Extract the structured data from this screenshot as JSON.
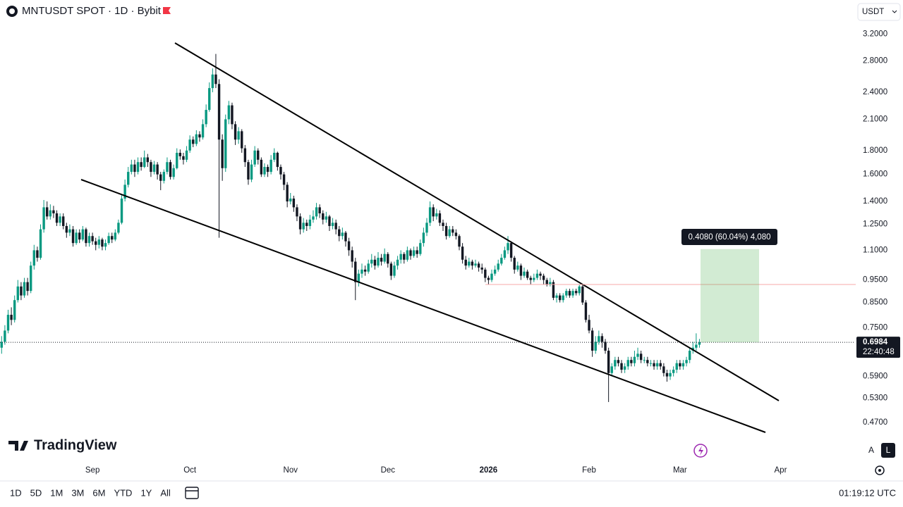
{
  "chart_data": {
    "type": "candlestick",
    "title": "MNTUSDT SPOT · 1D · Bybit",
    "currency": "USDT",
    "log_scale": true,
    "grid": false,
    "up_color": "#089981",
    "down_color": "#131722",
    "ylim": [
      0.395,
      3.41
    ],
    "yticks": [
      {
        "value": 3.2,
        "label": "3.2000"
      },
      {
        "value": 2.8,
        "label": "2.8000"
      },
      {
        "value": 2.4,
        "label": "2.4000"
      },
      {
        "value": 2.1,
        "label": "2.1000"
      },
      {
        "value": 1.8,
        "label": "1.8000"
      },
      {
        "value": 1.6,
        "label": "1.6000"
      },
      {
        "value": 1.4,
        "label": "1.4000"
      },
      {
        "value": 1.25,
        "label": "1.2500"
      },
      {
        "value": 1.1,
        "label": "1.1000"
      },
      {
        "value": 0.95,
        "label": "0.9500"
      },
      {
        "value": 0.85,
        "label": "0.8500"
      },
      {
        "value": 0.75,
        "label": "0.7500"
      },
      {
        "value": 0.59,
        "label": "0.5900"
      },
      {
        "value": 0.53,
        "label": "0.5300"
      },
      {
        "value": 0.47,
        "label": "0.4700"
      }
    ],
    "xlim": [
      -0.5,
      262.5
    ],
    "xticks": [
      {
        "value": 28,
        "label": "Sep"
      },
      {
        "value": 58,
        "label": "Oct"
      },
      {
        "value": 89,
        "label": "Nov"
      },
      {
        "value": 119,
        "label": "Dec"
      },
      {
        "value": 150,
        "label": "2026"
      },
      {
        "value": 181,
        "label": "Feb"
      },
      {
        "value": 209,
        "label": "Mar"
      },
      {
        "value": 240,
        "label": "Apr"
      }
    ],
    "last_price": 0.6984,
    "countdown": "22:40:48",
    "measure": {
      "value": 0.408,
      "label": "0.4080 (60.04%) 4,080"
    },
    "ohlc": [
      [
        0.68,
        0.72,
        0.66,
        0.7
      ],
      [
        0.7,
        0.76,
        0.69,
        0.74
      ],
      [
        0.74,
        0.82,
        0.73,
        0.8
      ],
      [
        0.8,
        0.83,
        0.76,
        0.78
      ],
      [
        0.78,
        0.88,
        0.77,
        0.86
      ],
      [
        0.86,
        0.95,
        0.85,
        0.92
      ],
      [
        0.92,
        0.94,
        0.86,
        0.88
      ],
      [
        0.88,
        0.96,
        0.87,
        0.94
      ],
      [
        0.94,
        0.96,
        0.88,
        0.9
      ],
      [
        0.9,
        1.04,
        0.89,
        1.02
      ],
      [
        1.02,
        1.13,
        1.0,
        1.1
      ],
      [
        1.1,
        1.12,
        1.04,
        1.06
      ],
      [
        1.06,
        1.25,
        1.05,
        1.22
      ],
      [
        1.22,
        1.41,
        1.2,
        1.36
      ],
      [
        1.36,
        1.4,
        1.28,
        1.3
      ],
      [
        1.3,
        1.38,
        1.28,
        1.34
      ],
      [
        1.34,
        1.37,
        1.29,
        1.32
      ],
      [
        1.32,
        1.34,
        1.24,
        1.26
      ],
      [
        1.26,
        1.32,
        1.24,
        1.3
      ],
      [
        1.3,
        1.32,
        1.22,
        1.24
      ],
      [
        1.24,
        1.26,
        1.17,
        1.2
      ],
      [
        1.2,
        1.25,
        1.18,
        1.22
      ],
      [
        1.22,
        1.24,
        1.12,
        1.14
      ],
      [
        1.14,
        1.22,
        1.13,
        1.2
      ],
      [
        1.2,
        1.22,
        1.14,
        1.16
      ],
      [
        1.16,
        1.24,
        1.15,
        1.22
      ],
      [
        1.22,
        1.23,
        1.12,
        1.14
      ],
      [
        1.14,
        1.2,
        1.12,
        1.18
      ],
      [
        1.18,
        1.2,
        1.13,
        1.15
      ],
      [
        1.15,
        1.17,
        1.1,
        1.13
      ],
      [
        1.13,
        1.18,
        1.11,
        1.16
      ],
      [
        1.16,
        1.17,
        1.1,
        1.12
      ],
      [
        1.12,
        1.16,
        1.1,
        1.14
      ],
      [
        1.14,
        1.2,
        1.13,
        1.18
      ],
      [
        1.18,
        1.2,
        1.14,
        1.16
      ],
      [
        1.16,
        1.22,
        1.15,
        1.2
      ],
      [
        1.2,
        1.28,
        1.19,
        1.26
      ],
      [
        1.26,
        1.45,
        1.25,
        1.42
      ],
      [
        1.42,
        1.56,
        1.4,
        1.52
      ],
      [
        1.52,
        1.66,
        1.5,
        1.62
      ],
      [
        1.62,
        1.72,
        1.6,
        1.68
      ],
      [
        1.68,
        1.72,
        1.58,
        1.62
      ],
      [
        1.62,
        1.74,
        1.6,
        1.7
      ],
      [
        1.7,
        1.74,
        1.63,
        1.66
      ],
      [
        1.66,
        1.8,
        1.65,
        1.74
      ],
      [
        1.74,
        1.77,
        1.66,
        1.7
      ],
      [
        1.7,
        1.72,
        1.58,
        1.62
      ],
      [
        1.62,
        1.71,
        1.6,
        1.68
      ],
      [
        1.68,
        1.7,
        1.56,
        1.6
      ],
      [
        1.6,
        1.62,
        1.48,
        1.55
      ],
      [
        1.55,
        1.64,
        1.53,
        1.62
      ],
      [
        1.62,
        1.74,
        1.6,
        1.7
      ],
      [
        1.7,
        1.72,
        1.56,
        1.58
      ],
      [
        1.58,
        1.68,
        1.56,
        1.65
      ],
      [
        1.65,
        1.82,
        1.64,
        1.78
      ],
      [
        1.78,
        1.81,
        1.72,
        1.75
      ],
      [
        1.75,
        1.78,
        1.68,
        1.72
      ],
      [
        1.72,
        1.84,
        1.7,
        1.8
      ],
      [
        1.8,
        1.94,
        1.78,
        1.9
      ],
      [
        1.9,
        1.93,
        1.83,
        1.86
      ],
      [
        1.86,
        1.99,
        1.84,
        1.95
      ],
      [
        1.95,
        1.98,
        1.88,
        1.92
      ],
      [
        1.92,
        2.1,
        1.9,
        2.05
      ],
      [
        2.05,
        2.26,
        2.02,
        2.2
      ],
      [
        2.2,
        2.52,
        2.18,
        2.45
      ],
      [
        2.45,
        2.7,
        2.4,
        2.62
      ],
      [
        2.62,
        2.9,
        2.45,
        2.5
      ],
      [
        2.5,
        2.56,
        1.17,
        1.9
      ],
      [
        1.9,
        1.95,
        1.55,
        1.65
      ],
      [
        1.65,
        2.15,
        1.62,
        2.1
      ],
      [
        2.1,
        2.3,
        2.05,
        2.25
      ],
      [
        2.25,
        2.28,
        2.0,
        2.05
      ],
      [
        2.05,
        2.08,
        1.85,
        1.9
      ],
      [
        1.9,
        2.02,
        1.86,
        1.98
      ],
      [
        1.98,
        2.0,
        1.78,
        1.82
      ],
      [
        1.82,
        1.85,
        1.66,
        1.7
      ],
      [
        1.7,
        1.72,
        1.52,
        1.56
      ],
      [
        1.56,
        1.72,
        1.54,
        1.68
      ],
      [
        1.68,
        1.84,
        1.66,
        1.8
      ],
      [
        1.8,
        1.82,
        1.68,
        1.72
      ],
      [
        1.72,
        1.74,
        1.58,
        1.6
      ],
      [
        1.6,
        1.69,
        1.58,
        1.66
      ],
      [
        1.66,
        1.68,
        1.58,
        1.62
      ],
      [
        1.62,
        1.76,
        1.6,
        1.72
      ],
      [
        1.72,
        1.82,
        1.7,
        1.78
      ],
      [
        1.78,
        1.79,
        1.63,
        1.66
      ],
      [
        1.66,
        1.68,
        1.56,
        1.6
      ],
      [
        1.6,
        1.62,
        1.48,
        1.52
      ],
      [
        1.52,
        1.54,
        1.36,
        1.4
      ],
      [
        1.4,
        1.46,
        1.38,
        1.42
      ],
      [
        1.42,
        1.44,
        1.33,
        1.36
      ],
      [
        1.36,
        1.38,
        1.27,
        1.3
      ],
      [
        1.3,
        1.32,
        1.19,
        1.22
      ],
      [
        1.22,
        1.29,
        1.2,
        1.26
      ],
      [
        1.26,
        1.28,
        1.21,
        1.24
      ],
      [
        1.24,
        1.31,
        1.22,
        1.28
      ],
      [
        1.28,
        1.34,
        1.26,
        1.3
      ],
      [
        1.3,
        1.39,
        1.28,
        1.36
      ],
      [
        1.36,
        1.38,
        1.29,
        1.32
      ],
      [
        1.32,
        1.34,
        1.25,
        1.28
      ],
      [
        1.28,
        1.33,
        1.26,
        1.3
      ],
      [
        1.3,
        1.31,
        1.21,
        1.24
      ],
      [
        1.24,
        1.29,
        1.22,
        1.26
      ],
      [
        1.26,
        1.28,
        1.19,
        1.22
      ],
      [
        1.22,
        1.24,
        1.15,
        1.18
      ],
      [
        1.18,
        1.23,
        1.16,
        1.2
      ],
      [
        1.2,
        1.21,
        1.12,
        1.15
      ],
      [
        1.15,
        1.17,
        1.07,
        1.1
      ],
      [
        1.1,
        1.12,
        1.01,
        1.04
      ],
      [
        1.04,
        1.06,
        0.86,
        0.94
      ],
      [
        0.94,
        1.0,
        0.92,
        0.98
      ],
      [
        0.98,
        1.03,
        0.96,
        1.0
      ],
      [
        1.0,
        1.02,
        0.97,
        0.99
      ],
      [
        0.99,
        1.05,
        0.98,
        1.03
      ],
      [
        1.03,
        1.08,
        1.01,
        1.05
      ],
      [
        1.05,
        1.07,
        1.0,
        1.02
      ],
      [
        1.02,
        1.09,
        1.01,
        1.06
      ],
      [
        1.06,
        1.08,
        1.02,
        1.04
      ],
      [
        1.04,
        1.11,
        1.03,
        1.08
      ],
      [
        1.08,
        1.09,
        1.01,
        1.03
      ],
      [
        1.03,
        1.04,
        0.95,
        0.97
      ],
      [
        0.97,
        1.04,
        0.96,
        1.02
      ],
      [
        1.02,
        1.07,
        1.0,
        1.05
      ],
      [
        1.05,
        1.1,
        1.03,
        1.08
      ],
      [
        1.08,
        1.09,
        1.03,
        1.05
      ],
      [
        1.05,
        1.12,
        1.04,
        1.1
      ],
      [
        1.1,
        1.11,
        1.05,
        1.07
      ],
      [
        1.07,
        1.12,
        1.06,
        1.1
      ],
      [
        1.1,
        1.12,
        1.06,
        1.08
      ],
      [
        1.08,
        1.16,
        1.07,
        1.14
      ],
      [
        1.14,
        1.23,
        1.12,
        1.2
      ],
      [
        1.2,
        1.29,
        1.18,
        1.26
      ],
      [
        1.26,
        1.4,
        1.24,
        1.36
      ],
      [
        1.36,
        1.38,
        1.27,
        1.3
      ],
      [
        1.3,
        1.35,
        1.28,
        1.32
      ],
      [
        1.32,
        1.34,
        1.24,
        1.26
      ],
      [
        1.26,
        1.28,
        1.21,
        1.24
      ],
      [
        1.24,
        1.26,
        1.16,
        1.18
      ],
      [
        1.18,
        1.24,
        1.17,
        1.22
      ],
      [
        1.22,
        1.24,
        1.18,
        1.2
      ],
      [
        1.2,
        1.22,
        1.16,
        1.18
      ],
      [
        1.18,
        1.19,
        1.1,
        1.12
      ],
      [
        1.12,
        1.14,
        1.03,
        1.05
      ],
      [
        1.05,
        1.07,
        1.0,
        1.02
      ],
      [
        1.02,
        1.06,
        1.01,
        1.04
      ],
      [
        1.04,
        1.05,
        1.0,
        1.02
      ],
      [
        1.02,
        1.05,
        1.01,
        1.03
      ],
      [
        1.03,
        1.04,
        0.99,
        1.01
      ],
      [
        1.01,
        1.03,
        0.98,
        1.0
      ],
      [
        1.0,
        1.01,
        0.94,
        0.96
      ],
      [
        0.96,
        0.97,
        0.93,
        0.95
      ],
      [
        0.95,
        1.0,
        0.94,
        0.98
      ],
      [
        0.98,
        1.02,
        0.97,
        1.0
      ],
      [
        1.0,
        1.05,
        0.99,
        1.03
      ],
      [
        1.03,
        1.08,
        1.02,
        1.06
      ],
      [
        1.06,
        1.12,
        1.05,
        1.1
      ],
      [
        1.1,
        1.18,
        1.08,
        1.14
      ],
      [
        1.14,
        1.15,
        1.04,
        1.06
      ],
      [
        1.06,
        1.07,
        0.98,
        1.0
      ],
      [
        1.0,
        1.04,
        0.99,
        1.02
      ],
      [
        1.02,
        1.03,
        0.95,
        0.97
      ],
      [
        0.97,
        1.01,
        0.96,
        0.99
      ],
      [
        0.99,
        1.0,
        0.95,
        0.96
      ],
      [
        0.96,
        0.97,
        0.93,
        0.95
      ],
      [
        0.95,
        0.98,
        0.94,
        0.96
      ],
      [
        0.96,
        1.0,
        0.95,
        0.98
      ],
      [
        0.98,
        0.99,
        0.95,
        0.97
      ],
      [
        0.97,
        0.98,
        0.93,
        0.95
      ],
      [
        0.95,
        0.96,
        0.92,
        0.93
      ],
      [
        0.93,
        0.96,
        0.92,
        0.94
      ],
      [
        0.94,
        0.95,
        0.86,
        0.87
      ],
      [
        0.87,
        0.89,
        0.85,
        0.88
      ],
      [
        0.88,
        0.89,
        0.85,
        0.86
      ],
      [
        0.86,
        0.89,
        0.85,
        0.88
      ],
      [
        0.88,
        0.91,
        0.87,
        0.9
      ],
      [
        0.9,
        0.91,
        0.87,
        0.88
      ],
      [
        0.88,
        0.91,
        0.87,
        0.9
      ],
      [
        0.9,
        0.91,
        0.88,
        0.89
      ],
      [
        0.89,
        0.93,
        0.88,
        0.92
      ],
      [
        0.92,
        0.93,
        0.84,
        0.85
      ],
      [
        0.85,
        0.86,
        0.77,
        0.78
      ],
      [
        0.78,
        0.8,
        0.73,
        0.74
      ],
      [
        0.74,
        0.75,
        0.65,
        0.67
      ],
      [
        0.67,
        0.72,
        0.66,
        0.7
      ],
      [
        0.7,
        0.74,
        0.69,
        0.72
      ],
      [
        0.72,
        0.73,
        0.68,
        0.7
      ],
      [
        0.7,
        0.71,
        0.66,
        0.67
      ],
      [
        0.67,
        0.68,
        0.52,
        0.6
      ],
      [
        0.6,
        0.63,
        0.59,
        0.62
      ],
      [
        0.62,
        0.65,
        0.61,
        0.64
      ],
      [
        0.64,
        0.65,
        0.62,
        0.63
      ],
      [
        0.63,
        0.64,
        0.6,
        0.61
      ],
      [
        0.61,
        0.63,
        0.6,
        0.62
      ],
      [
        0.62,
        0.65,
        0.61,
        0.64
      ],
      [
        0.64,
        0.65,
        0.62,
        0.63
      ],
      [
        0.63,
        0.67,
        0.62,
        0.65
      ],
      [
        0.65,
        0.68,
        0.64,
        0.66
      ],
      [
        0.66,
        0.67,
        0.63,
        0.64
      ],
      [
        0.64,
        0.65,
        0.63,
        0.64
      ],
      [
        0.64,
        0.65,
        0.62,
        0.63
      ],
      [
        0.63,
        0.64,
        0.62,
        0.63
      ],
      [
        0.63,
        0.64,
        0.61,
        0.62
      ],
      [
        0.62,
        0.64,
        0.61,
        0.63
      ],
      [
        0.63,
        0.64,
        0.61,
        0.62
      ],
      [
        0.62,
        0.63,
        0.59,
        0.6
      ],
      [
        0.6,
        0.61,
        0.575,
        0.59
      ],
      [
        0.59,
        0.61,
        0.58,
        0.6
      ],
      [
        0.6,
        0.62,
        0.59,
        0.61
      ],
      [
        0.61,
        0.64,
        0.6,
        0.63
      ],
      [
        0.63,
        0.64,
        0.61,
        0.62
      ],
      [
        0.62,
        0.64,
        0.61,
        0.63
      ],
      [
        0.63,
        0.65,
        0.62,
        0.64
      ],
      [
        0.64,
        0.68,
        0.63,
        0.67
      ],
      [
        0.67,
        0.7,
        0.66,
        0.68
      ],
      [
        0.68,
        0.73,
        0.67,
        0.69
      ],
      [
        0.69,
        0.71,
        0.68,
        0.6984
      ]
    ]
  },
  "ui": {
    "brand": "TradingView",
    "ranges": [
      "1D",
      "5D",
      "1M",
      "3M",
      "6M",
      "YTD",
      "1Y",
      "All"
    ],
    "clock": "01:19:12 UTC",
    "scale_buttons": [
      "A",
      "L"
    ]
  }
}
